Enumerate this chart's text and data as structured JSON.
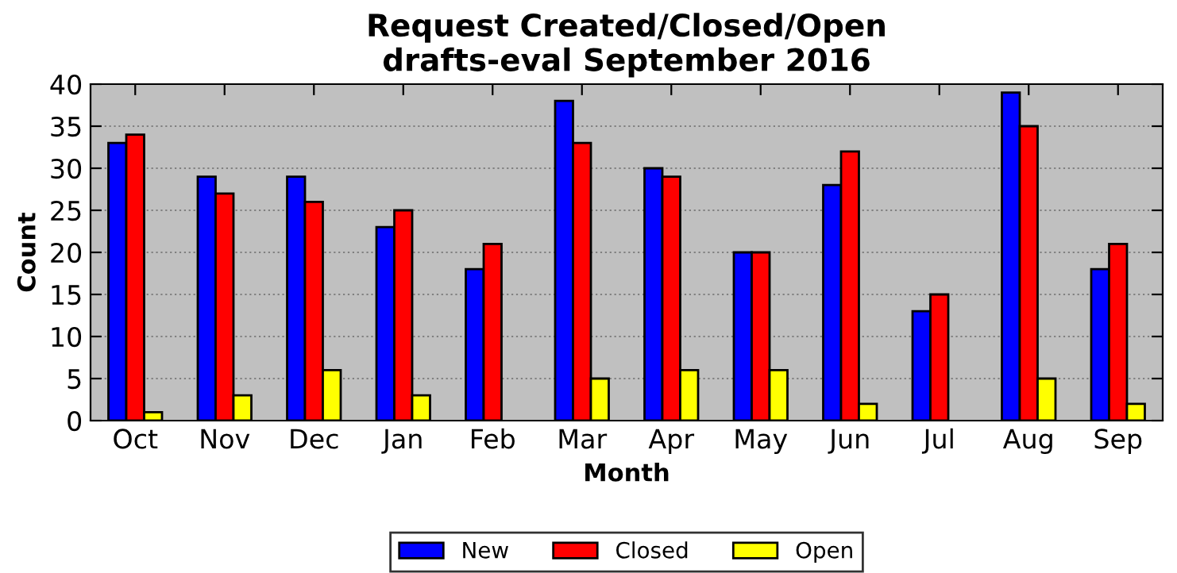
{
  "chart_data": {
    "type": "bar",
    "title": "Request Created/Closed/Open\ndrafts-eval September 2016",
    "xlabel": "Month",
    "ylabel": "Count",
    "categories": [
      "Oct",
      "Nov",
      "Dec",
      "Jan",
      "Feb",
      "Mar",
      "Apr",
      "May",
      "Jun",
      "Jul",
      "Aug",
      "Sep"
    ],
    "series": [
      {
        "name": "New",
        "color": "#0000ff",
        "values": [
          33,
          29,
          29,
          23,
          18,
          38,
          30,
          20,
          28,
          13,
          39,
          18
        ]
      },
      {
        "name": "Closed",
        "color": "#ff0000",
        "values": [
          34,
          27,
          26,
          25,
          21,
          33,
          29,
          20,
          32,
          15,
          35,
          21
        ]
      },
      {
        "name": "Open",
        "color": "#ffff00",
        "values": [
          1,
          3,
          6,
          3,
          0,
          5,
          6,
          6,
          2,
          0,
          5,
          2
        ]
      }
    ],
    "ylim": [
      0,
      40
    ],
    "yticks": [
      0,
      5,
      10,
      15,
      20,
      25,
      30,
      35,
      40
    ],
    "grid": "y",
    "legend": "bottom"
  }
}
